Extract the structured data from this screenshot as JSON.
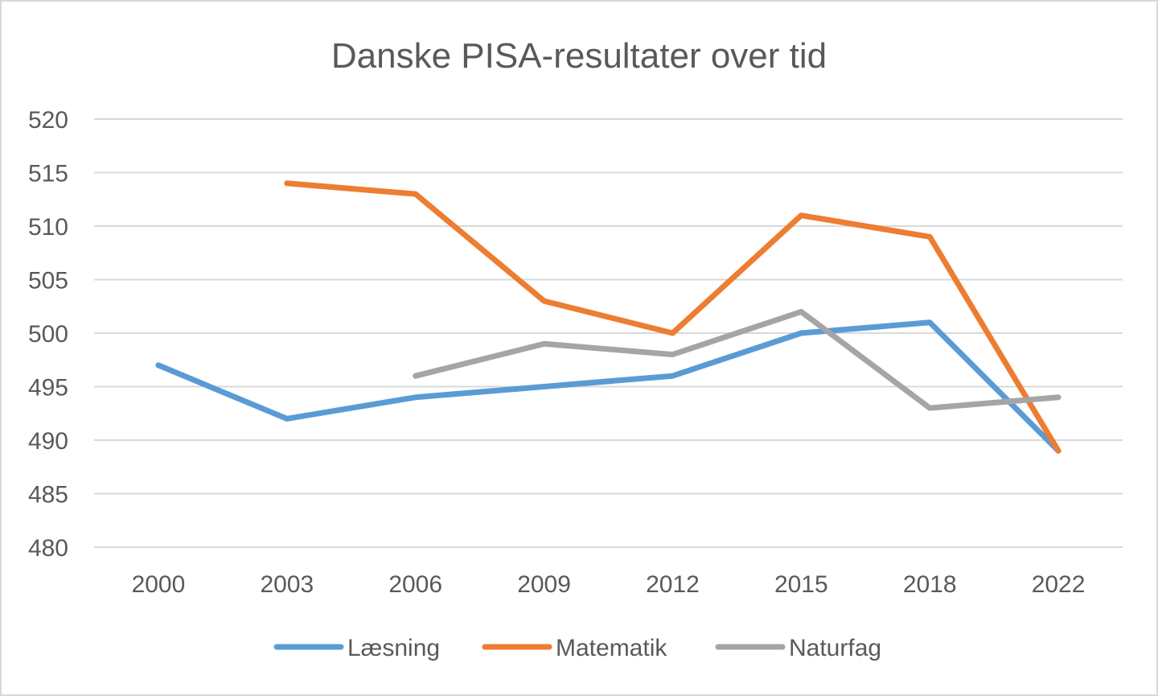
{
  "chart_data": {
    "type": "line",
    "title": "Danske PISA-resultater over tid",
    "xlabel": "",
    "ylabel": "",
    "categories": [
      "2000",
      "2003",
      "2006",
      "2009",
      "2012",
      "2015",
      "2018",
      "2022"
    ],
    "y_ticks": [
      "480",
      "485",
      "490",
      "495",
      "500",
      "505",
      "510",
      "515",
      "520"
    ],
    "ylim": [
      480,
      520
    ],
    "grid": "horizontal",
    "legend_position": "bottom",
    "series": [
      {
        "name": "Læsning",
        "color": "#5b9bd5",
        "values": [
          497,
          492,
          494,
          495,
          496,
          500,
          501,
          489
        ]
      },
      {
        "name": "Matematik",
        "color": "#ed7d31",
        "values": [
          null,
          514,
          513,
          503,
          500,
          511,
          509,
          489
        ]
      },
      {
        "name": "Naturfag",
        "color": "#a5a5a5",
        "values": [
          null,
          null,
          496,
          499,
          498,
          502,
          493,
          494
        ]
      }
    ]
  }
}
